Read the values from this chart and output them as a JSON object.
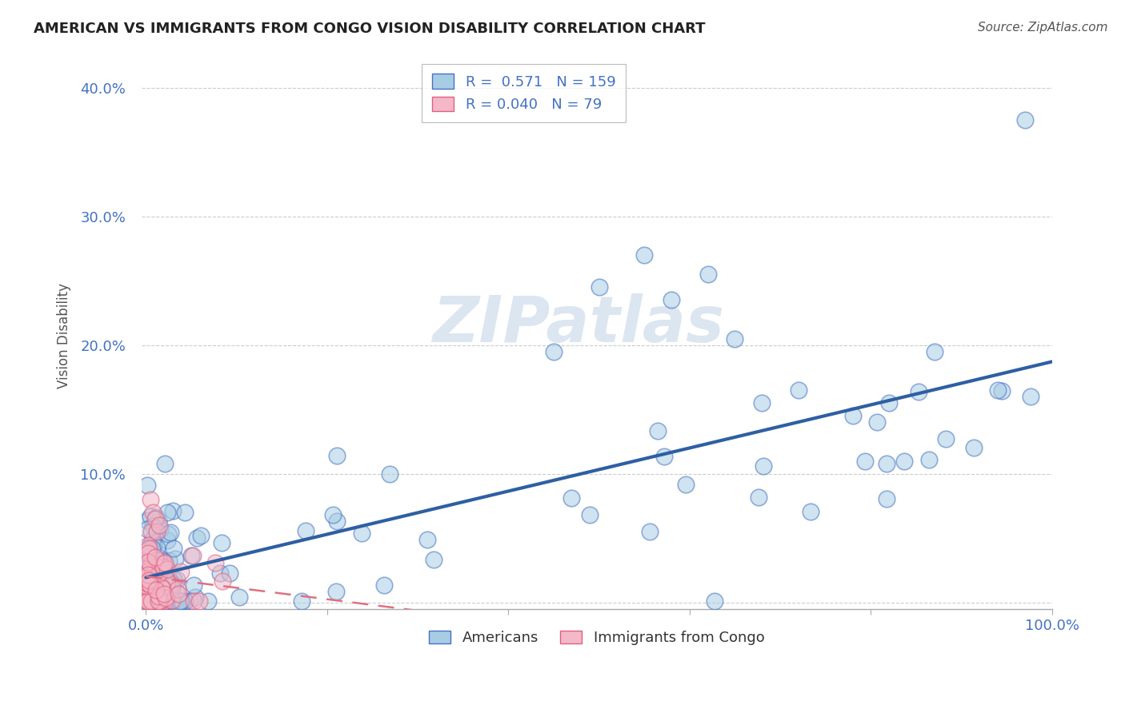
{
  "title": "AMERICAN VS IMMIGRANTS FROM CONGO VISION DISABILITY CORRELATION CHART",
  "source": "Source: ZipAtlas.com",
  "ylabel": "Vision Disability",
  "R_american": 0.571,
  "N_american": 159,
  "R_congo": 0.04,
  "N_congo": 79,
  "color_american": "#a8cce4",
  "color_congo": "#f4b8c8",
  "edge_color_american": "#4472c4",
  "edge_color_congo": "#e06080",
  "line_color_american": "#2e5fa3",
  "line_color_congo": "#e07080",
  "background_color": "#ffffff",
  "watermark_text": "ZIPatlas",
  "watermark_color": "#dce6f0",
  "title_color": "#222222",
  "source_color": "#555555",
  "tick_color": "#4472c4",
  "ylabel_color": "#555555"
}
